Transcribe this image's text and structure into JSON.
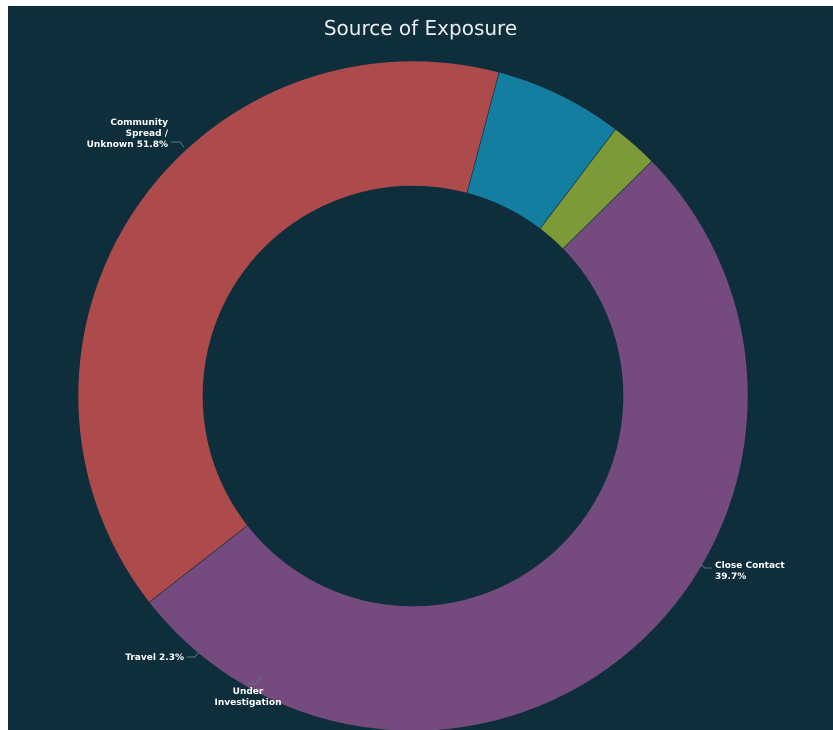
{
  "chart_data": {
    "type": "pie",
    "title": "Source of Exposure",
    "slices": [
      {
        "name": "Community Spread / Unknown",
        "value": 51.8,
        "label_lines": [
          "Community",
          "Spread /",
          "Unknown 51.8%"
        ],
        "color": "#754b7f"
      },
      {
        "name": "Close Contact",
        "value": 39.7,
        "label_lines": [
          "Close Contact",
          "39.7%"
        ],
        "color": "#ac4a4c"
      },
      {
        "name": "Under Investigation",
        "value": 6.2,
        "label_lines": [
          "Under",
          "Investigation"
        ],
        "color": "#147ea1"
      },
      {
        "name": "Travel",
        "value": 2.3,
        "label_lines": [
          "Travel 2.3%"
        ],
        "color": "#7c9a38"
      }
    ],
    "start_angle_deg": 45.5,
    "donut": true,
    "legend": "none"
  },
  "colors": {
    "background": "#0e2e3b",
    "title_text": "#e9eef0",
    "leader_line": "#5f7680"
  }
}
